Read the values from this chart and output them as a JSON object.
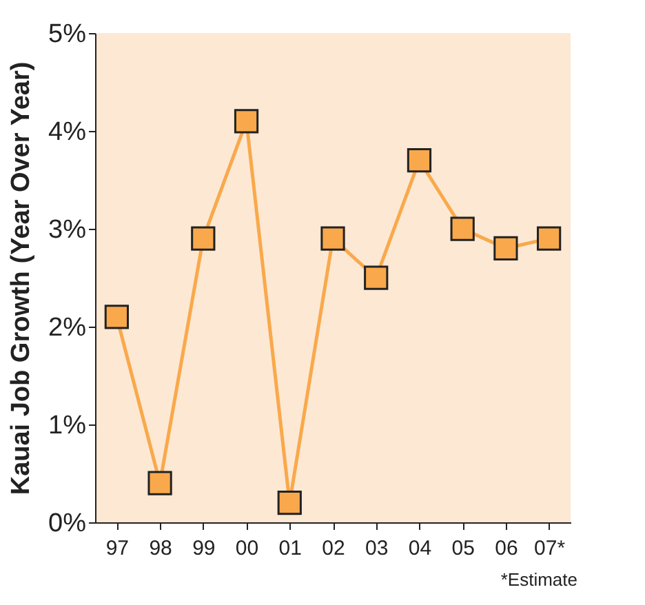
{
  "chart_data": {
    "type": "line",
    "ylabel": "Kauai Job Growth (Year Over Year)",
    "categories": [
      "97",
      "98",
      "99",
      "00",
      "01",
      "02",
      "03",
      "04",
      "05",
      "06",
      "07*"
    ],
    "series": [
      {
        "color": "#f9a94b",
        "values": [
          2.1,
          0.4,
          2.9,
          4.1,
          0.2,
          2.9,
          2.5,
          3.7,
          3.0,
          2.8,
          2.9
        ]
      }
    ],
    "ylim": [
      0,
      5
    ],
    "yticks": [
      {
        "value": 0,
        "label": "0%"
      },
      {
        "value": 1,
        "label": "1%"
      },
      {
        "value": 2,
        "label": "2%"
      },
      {
        "value": 3,
        "label": "3%"
      },
      {
        "value": 4,
        "label": "4%"
      },
      {
        "value": 5,
        "label": "5%"
      }
    ],
    "marker": "square",
    "grid": false,
    "annotations": [
      "*Estimate"
    ]
  }
}
